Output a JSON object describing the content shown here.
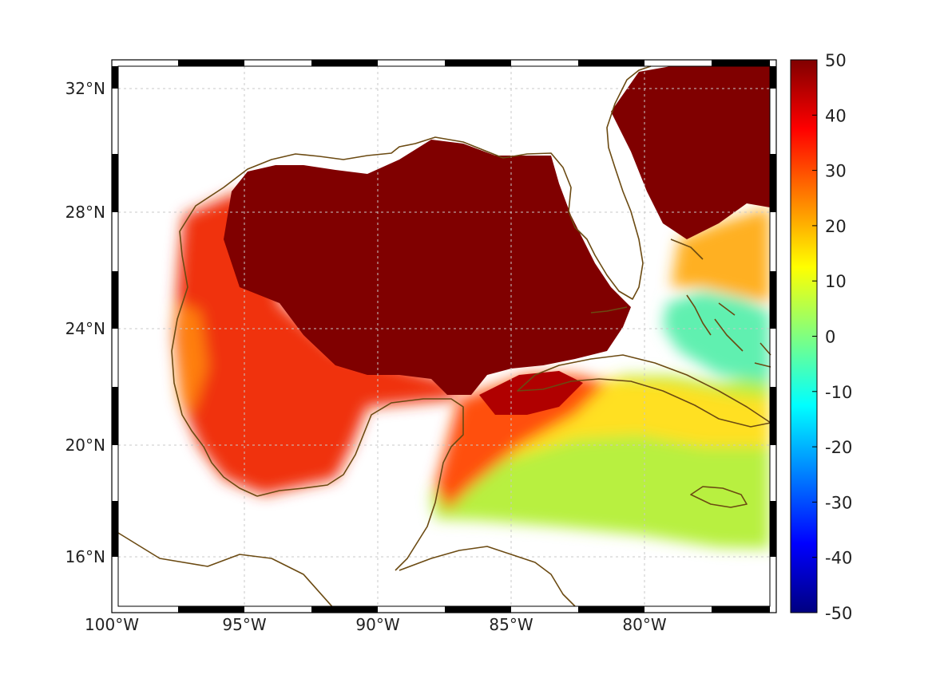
{
  "chart_data": {
    "type": "heatmap",
    "title": "",
    "xlabel": "",
    "ylabel": "",
    "xlim": [
      -100,
      -75
    ],
    "ylim": [
      14.4,
      33
    ],
    "x_ticks": [
      {
        "value": -100,
        "label": "100°W"
      },
      {
        "value": -95,
        "label": "95°W"
      },
      {
        "value": -90,
        "label": "90°W"
      },
      {
        "value": -85,
        "label": "85°W"
      },
      {
        "value": -80,
        "label": "80°W"
      }
    ],
    "y_ticks": [
      {
        "value": 32,
        "label": "32°N"
      },
      {
        "value": 28,
        "label": "28°N"
      },
      {
        "value": 24,
        "label": "24°N"
      },
      {
        "value": 20,
        "label": "20°N"
      },
      {
        "value": 16,
        "label": "16°N"
      }
    ],
    "colorbar": {
      "range": [
        -50,
        50
      ],
      "colormap": "jet",
      "ticks": [
        50,
        40,
        30,
        20,
        10,
        0,
        -10,
        -20,
        -30,
        -40,
        -50
      ],
      "labels": [
        "50",
        "40",
        "30",
        "20",
        "10",
        "0",
        "-10",
        "-20",
        "-30",
        "-40",
        "-50"
      ]
    },
    "grid": true,
    "coastline_color": "#6b4a12",
    "field_regions": [
      {
        "name": "northern-gulf",
        "value": 50
      },
      {
        "name": "atlantic-east-of-florida",
        "value": 50
      },
      {
        "name": "western-gulf",
        "value": 38
      },
      {
        "name": "bay-of-campeche",
        "value": 40
      },
      {
        "name": "yucatan-channel",
        "value": 42
      },
      {
        "name": "south-of-cuba",
        "value": 22
      },
      {
        "name": "central-caribbean",
        "value": 10
      },
      {
        "name": "bahamas-banks",
        "value": 0
      },
      {
        "name": "east-of-bahamas",
        "value": 25
      }
    ]
  }
}
